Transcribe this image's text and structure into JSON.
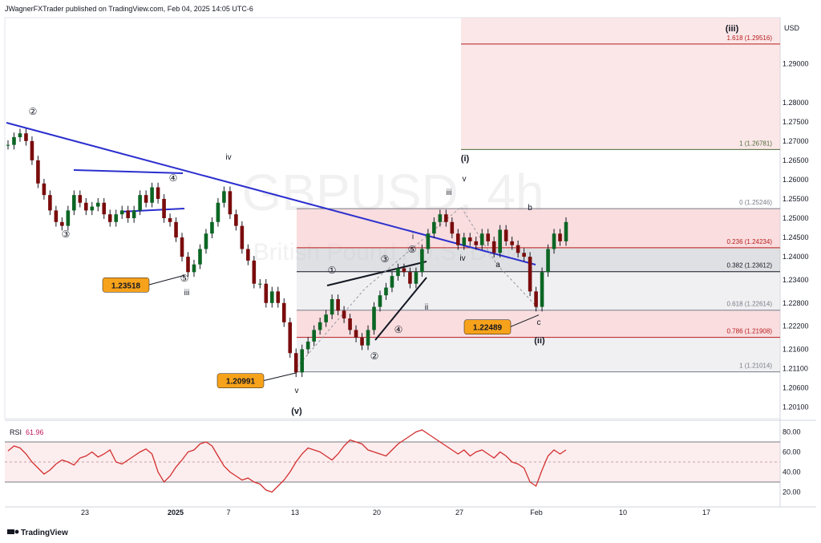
{
  "header": {
    "publisher": "JWagnerFXTrader published on TradingView.com, Feb 04, 2025 14:05 UTC-6"
  },
  "watermark": {
    "symbol": "GBPUSD, 4h",
    "name": "British Pound / U.S. Dollar"
  },
  "currency": "USD",
  "footer": {
    "logo": "TradingView"
  },
  "chart_data": [
    {
      "type": "candlestick",
      "title": "GBPUSD, 4h",
      "ylim": [
        1.198,
        1.302
      ],
      "y_ticks": [
        "1.29000",
        "1.28000",
        "1.27500",
        "1.27000",
        "1.26500",
        "1.26000",
        "1.25500",
        "1.25000",
        "1.24500",
        "1.24000",
        "1.23400",
        "1.22800",
        "1.22200",
        "1.21600",
        "1.21100",
        "1.20600",
        "1.20100"
      ],
      "x_ticks": [
        "23",
        "2025",
        "7",
        "13",
        "20",
        "27",
        "Feb",
        "10",
        "17"
      ],
      "series": [
        {
          "name": "GBPUSD",
          "values": [
            1.269,
            1.271,
            1.272,
            1.27,
            1.265,
            1.259,
            1.256,
            1.252,
            1.249,
            1.248,
            1.252,
            1.256,
            1.254,
            1.252,
            1.253,
            1.254,
            1.251,
            1.249,
            1.251,
            1.252,
            1.25,
            1.252,
            1.256,
            1.254,
            1.258,
            1.255,
            1.25,
            1.249,
            1.245,
            1.24,
            1.236,
            1.238,
            1.242,
            1.246,
            1.249,
            1.254,
            1.257,
            1.251,
            1.248,
            1.242,
            1.239,
            1.233,
            1.233,
            1.228,
            1.231,
            1.228,
            1.223,
            1.215,
            1.21,
            1.216,
            1.218,
            1.221,
            1.223,
            1.225,
            1.229,
            1.226,
            1.224,
            1.221,
            1.219,
            1.217,
            1.221,
            1.227,
            1.23,
            1.232,
            1.235,
            1.237,
            1.236,
            1.233,
            1.236,
            1.242,
            1.246,
            1.249,
            1.251,
            1.249,
            1.246,
            1.243,
            1.245,
            1.244,
            1.243,
            1.246,
            1.244,
            1.241,
            1.247,
            1.244,
            1.243,
            1.241,
            1.24,
            1.231,
            1.227,
            1.236,
            1.242,
            1.246,
            1.244,
            1.249
          ]
        }
      ],
      "price_labels": [
        {
          "text": "1.23518",
          "value": 1.23518
        },
        {
          "text": "1.22489",
          "value": 1.22489
        },
        {
          "text": "1.20991",
          "value": 1.20991
        }
      ],
      "fib_levels": [
        {
          "label": "1.618 (1.29516)",
          "value": 1.29516,
          "color": "#b71c1c"
        },
        {
          "label": "1 (1.26781)",
          "value": 1.26781,
          "color": "#4e6b3a"
        },
        {
          "label": "0 (1.25246)",
          "value": 1.25246,
          "color": "#787b86"
        },
        {
          "label": "0.236 (1.24234)",
          "value": 1.24234,
          "color": "#b71c1c"
        },
        {
          "label": "0.382 (1.23612)",
          "value": 1.23612,
          "color": "#131722"
        },
        {
          "label": "0.618 (1.22614)",
          "value": 1.22614,
          "color": "#787b86"
        },
        {
          "label": "0.786 (1.21908)",
          "value": 1.21908,
          "color": "#b71c1c"
        },
        {
          "label": "1 (1.21014)",
          "value": 1.21014,
          "color": "#787b86"
        }
      ],
      "wave_labels": [
        "②",
        "③",
        "④",
        "⑤",
        "iii",
        "iv",
        "v",
        "(v)",
        "①",
        "②",
        "③",
        "④",
        "⑤",
        "i",
        "ii",
        "iii",
        "iv",
        "v",
        "(i)",
        "a",
        "b",
        "c",
        "(ii)",
        "(iii)"
      ]
    },
    {
      "type": "line",
      "title": "RSI",
      "value_label": "61.96",
      "ylim": [
        10,
        90
      ],
      "y_ticks": [
        "80.00",
        "60.00",
        "40.00",
        "20.00"
      ],
      "bands": [
        70,
        30
      ],
      "midline": 50,
      "series": [
        {
          "name": "RSI",
          "values": [
            61,
            66,
            64,
            58,
            50,
            44,
            38,
            42,
            48,
            52,
            50,
            47,
            54,
            56,
            60,
            55,
            58,
            62,
            50,
            48,
            52,
            56,
            60,
            63,
            58,
            40,
            30,
            36,
            45,
            52,
            60,
            62,
            68,
            70,
            66,
            56,
            46,
            40,
            36,
            32,
            34,
            30,
            28,
            22,
            20,
            26,
            32,
            40,
            50,
            58,
            64,
            62,
            60,
            56,
            52,
            58,
            66,
            72,
            70,
            68,
            62,
            60,
            58,
            56,
            62,
            68,
            72,
            76,
            80,
            82,
            78,
            74,
            70,
            66,
            62,
            58,
            62,
            56,
            60,
            62,
            58,
            54,
            60,
            56,
            50,
            48,
            44,
            30,
            26,
            42,
            56,
            62,
            58,
            62
          ]
        }
      ]
    }
  ]
}
